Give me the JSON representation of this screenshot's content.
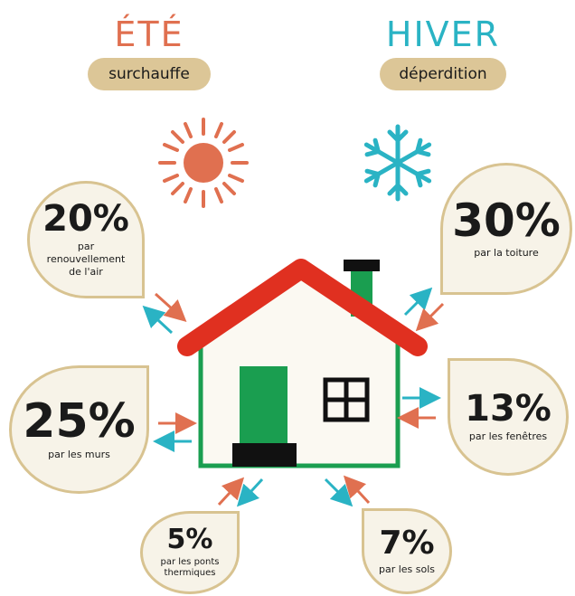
{
  "summer": {
    "title": "ÉTÉ",
    "subtitle": "surchauffe"
  },
  "winter": {
    "title": "HIVER",
    "subtitle": "déperdition"
  },
  "callouts": [
    {
      "value": "20%",
      "label": "par renouvellement de l'air"
    },
    {
      "value": "30%",
      "label": "par la toiture"
    },
    {
      "value": "25%",
      "label": "par les murs"
    },
    {
      "value": "13%",
      "label": "par les fenêtres"
    },
    {
      "value": "5%",
      "label": "par les ponts thermiques"
    },
    {
      "value": "7%",
      "label": "par les sols"
    }
  ]
}
